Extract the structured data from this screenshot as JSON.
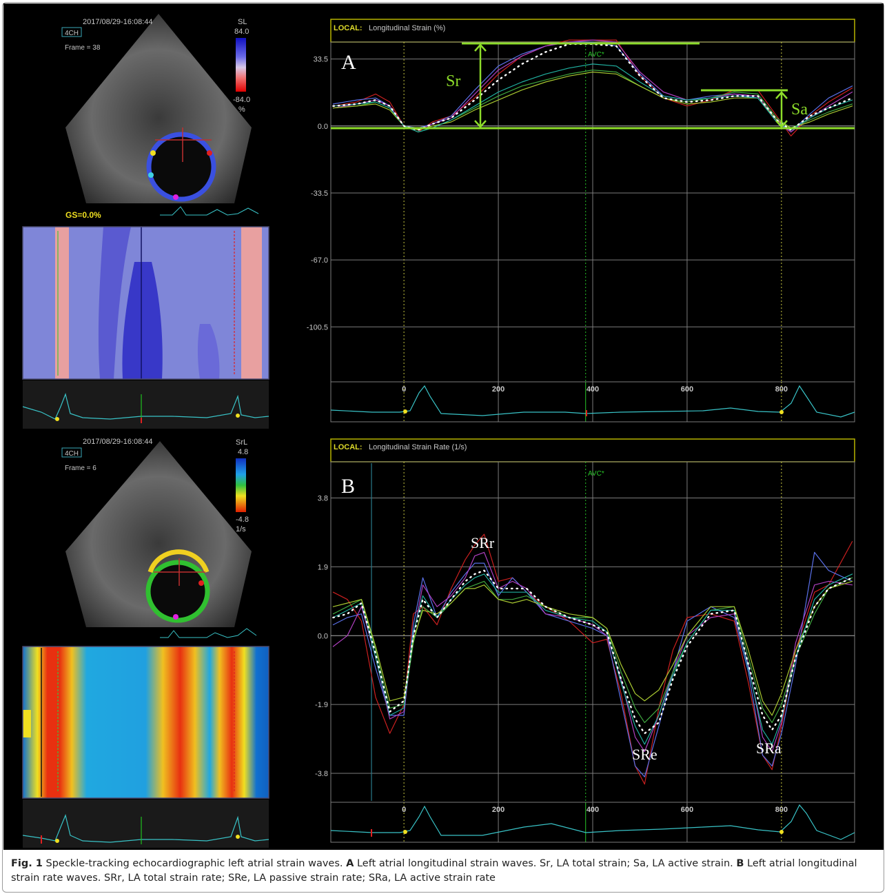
{
  "colors": {
    "grid": "#7d7d7d",
    "annot": "#8ddc2a",
    "ecg": "#39c4c8",
    "header_border": "#b8b400",
    "header_label": "#e0dc2a",
    "avc": "#28c828"
  },
  "panelA": {
    "timestamp": "2017/08/29-16:08:44",
    "view": "4CH",
    "frame": "Frame = 38",
    "scale_name": "SL",
    "scale_max": "84.0",
    "scale_min": "-84.0",
    "scale_unit": "%",
    "gs": "GS=0.0%",
    "header_local": "LOCAL:",
    "header_title": "Longitudinal Strain (%)",
    "letter": "A",
    "avc": "AVC*",
    "sr_label": "Sr",
    "sa_label": "Sa"
  },
  "panelB": {
    "timestamp": "2017/08/29-16:08:44",
    "view": "4CH",
    "frame": "Frame =  6",
    "scale_name": "SrL",
    "scale_max": "4.8",
    "scale_min": "-4.8",
    "scale_unit": "1/s",
    "header_local": "LOCAL:",
    "header_title": "Longitudinal Strain Rate (1/s)",
    "letter": "B",
    "avc": "AVC*",
    "srr_label": "SRr",
    "sre_label": "SRe",
    "sra_label": "SRa"
  },
  "chart_data": [
    {
      "type": "line",
      "title": "Longitudinal Strain (%)",
      "xlabel": "",
      "ylabel": "",
      "x_ticks": [
        "0",
        "200",
        "400",
        "600",
        "800"
      ],
      "y_ticks": [
        "33.5",
        "0.0",
        "-33.5",
        "-67.0",
        "-100.5"
      ],
      "xlim": [
        -155,
        955
      ],
      "ylim": [
        -128,
        42
      ],
      "markers": {
        "avc_ms": 385,
        "frame_ms": [
          0,
          800
        ]
      },
      "annotations": {
        "Sr": [
          0,
          41.5
        ],
        "Sa": [
          800,
          19
        ]
      },
      "series": [
        {
          "color": "#ffffff",
          "style": "dotted",
          "x": [
            -150,
            -100,
            -60,
            -30,
            0,
            30,
            60,
            100,
            150,
            200,
            250,
            300,
            350,
            400,
            450,
            500,
            550,
            600,
            650,
            700,
            750,
            790,
            820,
            860,
            900,
            950
          ],
          "y": [
            10,
            11,
            13,
            10,
            0,
            -2,
            1,
            4,
            13,
            23,
            31,
            37,
            41,
            41,
            40,
            25,
            14,
            12,
            13,
            15,
            15,
            3,
            -2,
            5,
            9,
            14
          ]
        },
        {
          "color": "#cc2020",
          "x": [
            -150,
            -100,
            -60,
            -30,
            0,
            30,
            60,
            100,
            150,
            200,
            250,
            300,
            350,
            400,
            450,
            500,
            550,
            600,
            650,
            700,
            750,
            790,
            820,
            860,
            900,
            950
          ],
          "y": [
            10,
            12,
            16,
            12,
            0,
            -3,
            2,
            5,
            14,
            26,
            35,
            40,
            43,
            43,
            43,
            25,
            14,
            10,
            13,
            18,
            18,
            5,
            -5,
            5,
            12,
            19
          ]
        },
        {
          "color": "#5a70e8",
          "x": [
            -150,
            -100,
            -60,
            -30,
            0,
            30,
            60,
            100,
            150,
            200,
            250,
            300,
            350,
            400,
            450,
            500,
            550,
            600,
            650,
            700,
            750,
            790,
            820,
            860,
            900,
            950
          ],
          "y": [
            11,
            13,
            14,
            10,
            0,
            -1,
            1,
            5,
            18,
            30,
            36,
            40,
            42,
            42,
            40,
            26,
            15,
            13,
            15,
            16,
            14,
            2,
            -3,
            6,
            14,
            20
          ]
        },
        {
          "color": "#b040c0",
          "x": [
            -150,
            -100,
            -60,
            -30,
            0,
            30,
            60,
            100,
            150,
            200,
            250,
            300,
            350,
            400,
            450,
            500,
            550,
            600,
            650,
            700,
            750,
            790,
            820,
            860,
            900,
            950
          ],
          "y": [
            9,
            11,
            13,
            10,
            0,
            -2,
            1,
            4,
            16,
            28,
            35,
            40,
            42,
            43,
            42,
            27,
            17,
            13,
            14,
            16,
            15,
            3,
            -3,
            4,
            10,
            17
          ]
        },
        {
          "color": "#40a840",
          "x": [
            -150,
            -100,
            -60,
            -30,
            0,
            30,
            60,
            100,
            150,
            200,
            250,
            300,
            350,
            400,
            450,
            500,
            550,
            600,
            650,
            700,
            750,
            790,
            820,
            860,
            900,
            950
          ],
          "y": [
            9,
            10,
            12,
            9,
            0,
            -3,
            -1,
            3,
            9,
            15,
            20,
            23,
            26,
            28,
            27,
            20,
            14,
            12,
            14,
            17,
            16,
            4,
            -1,
            3,
            7,
            11
          ]
        },
        {
          "color": "#a8c830",
          "x": [
            -150,
            -100,
            -60,
            -30,
            0,
            30,
            60,
            100,
            150,
            200,
            250,
            300,
            350,
            400,
            450,
            500,
            550,
            600,
            650,
            700,
            750,
            790,
            820,
            860,
            900,
            950
          ],
          "y": [
            9,
            10,
            11,
            8,
            0,
            -2,
            0,
            2,
            8,
            13,
            18,
            22,
            25,
            27,
            26,
            20,
            14,
            11,
            12,
            14,
            14,
            3,
            -1,
            2,
            6,
            10
          ]
        },
        {
          "color": "#20b0a0",
          "x": [
            -150,
            -100,
            -60,
            -30,
            0,
            30,
            60,
            100,
            150,
            200,
            250,
            300,
            350,
            400,
            450,
            500,
            550,
            600,
            650,
            700,
            750,
            790,
            820,
            860,
            900,
            950
          ],
          "y": [
            10,
            11,
            12,
            9,
            0,
            -3,
            -1,
            3,
            10,
            17,
            22,
            26,
            29,
            31,
            30,
            22,
            15,
            13,
            14,
            15,
            14,
            2,
            -2,
            4,
            9,
            13
          ]
        }
      ]
    },
    {
      "type": "line",
      "title": "Longitudinal Strain Rate (1/s)",
      "xlabel": "",
      "ylabel": "",
      "x_ticks": [
        "0",
        "200",
        "400",
        "600",
        "800"
      ],
      "y_ticks": [
        "3.8",
        "1.9",
        "0.0",
        "-1.9",
        "-3.8"
      ],
      "xlim": [
        -155,
        955
      ],
      "ylim": [
        -4.6,
        4.8
      ],
      "markers": {
        "avc_ms": 385,
        "frame_ms": [
          0,
          800
        ]
      },
      "annotations": {
        "SRr": [
          150,
          2.35
        ],
        "SRe": [
          510,
          -3.3
        ],
        "SRa": [
          780,
          -3.0
        ]
      },
      "series": [
        {
          "color": "#ffffff",
          "style": "dotted",
          "x": [
            -150,
            -120,
            -90,
            -60,
            -30,
            0,
            20,
            40,
            70,
            100,
            130,
            150,
            170,
            200,
            230,
            260,
            300,
            350,
            400,
            430,
            460,
            490,
            510,
            540,
            570,
            600,
            650,
            700,
            730,
            760,
            780,
            800,
            830,
            870,
            900,
            950
          ],
          "y": [
            0.5,
            0.6,
            0.9,
            -0.5,
            -2.1,
            -1.8,
            0.0,
            1.0,
            0.5,
            1.0,
            1.5,
            1.7,
            1.8,
            1.3,
            1.3,
            1.3,
            0.8,
            0.5,
            0.3,
            0.1,
            -1.2,
            -2.3,
            -2.7,
            -2.4,
            -1.2,
            -0.3,
            0.6,
            0.7,
            -0.8,
            -2.2,
            -2.6,
            -2.2,
            -0.6,
            0.8,
            1.3,
            1.6
          ]
        },
        {
          "color": "#cc2020",
          "x": [
            -150,
            -120,
            -90,
            -60,
            -30,
            0,
            20,
            40,
            70,
            100,
            130,
            150,
            170,
            200,
            230,
            260,
            300,
            350,
            400,
            430,
            460,
            490,
            510,
            540,
            570,
            600,
            650,
            700,
            730,
            760,
            780,
            800,
            830,
            870,
            900,
            950
          ],
          "y": [
            1.2,
            1.0,
            0.4,
            -1.7,
            -2.7,
            -1.9,
            0.6,
            0.8,
            0.3,
            1.3,
            2.1,
            2.5,
            2.8,
            1.5,
            1.6,
            1.2,
            0.8,
            0.4,
            -0.2,
            -0.1,
            -1.6,
            -3.6,
            -4.1,
            -2.0,
            -0.4,
            0.5,
            0.6,
            0.4,
            -1.3,
            -3.3,
            -3.7,
            -2.5,
            -0.4,
            1.2,
            1.4,
            2.6
          ]
        },
        {
          "color": "#5a70e8",
          "x": [
            -150,
            -120,
            -90,
            -60,
            -30,
            0,
            20,
            40,
            70,
            100,
            130,
            150,
            170,
            200,
            230,
            260,
            300,
            350,
            400,
            430,
            460,
            490,
            510,
            540,
            570,
            600,
            650,
            700,
            730,
            760,
            780,
            800,
            830,
            870,
            900,
            950
          ],
          "y": [
            0.3,
            0.5,
            0.6,
            -0.9,
            -2.2,
            -2.2,
            0.3,
            1.6,
            0.5,
            1.2,
            1.7,
            2.0,
            2.0,
            1.1,
            1.6,
            1.2,
            0.6,
            0.4,
            0.2,
            0.0,
            -1.8,
            -3.6,
            -3.9,
            -2.5,
            -1.0,
            0.4,
            0.8,
            0.5,
            -1.0,
            -3.3,
            -3.6,
            -2.7,
            -0.8,
            2.3,
            1.8,
            1.5
          ]
        },
        {
          "color": "#b040c0",
          "x": [
            -150,
            -120,
            -90,
            -60,
            -30,
            0,
            20,
            40,
            70,
            100,
            130,
            150,
            170,
            200,
            230,
            260,
            300,
            350,
            400,
            430,
            460,
            490,
            510,
            540,
            570,
            600,
            650,
            700,
            730,
            760,
            780,
            800,
            830,
            870,
            900,
            950
          ],
          "y": [
            -0.3,
            0.0,
            0.8,
            -0.6,
            -2.3,
            -2.1,
            0.0,
            1.4,
            0.8,
            1.1,
            1.6,
            2.2,
            2.3,
            1.3,
            1.5,
            1.3,
            0.6,
            0.5,
            0.3,
            0.0,
            -1.2,
            -2.8,
            -3.2,
            -2.2,
            -1.0,
            0.0,
            0.5,
            0.6,
            -0.8,
            -2.8,
            -3.2,
            -2.4,
            -0.2,
            1.4,
            1.5,
            1.4
          ]
        },
        {
          "color": "#40a840",
          "x": [
            -150,
            -120,
            -90,
            -60,
            -30,
            0,
            20,
            40,
            70,
            100,
            130,
            150,
            170,
            200,
            230,
            260,
            300,
            350,
            400,
            430,
            460,
            490,
            510,
            540,
            570,
            600,
            650,
            700,
            730,
            760,
            780,
            800,
            830,
            870,
            900,
            950
          ],
          "y": [
            0.6,
            0.8,
            1.0,
            -0.4,
            -2.0,
            -1.9,
            -0.2,
            0.8,
            0.5,
            0.9,
            1.3,
            1.4,
            1.5,
            1.0,
            1.0,
            1.1,
            0.8,
            0.5,
            0.5,
            0.2,
            -1.0,
            -2.0,
            -2.4,
            -2.0,
            -1.0,
            -0.2,
            0.7,
            0.8,
            -0.6,
            -2.0,
            -2.4,
            -1.9,
            -0.6,
            0.6,
            1.3,
            1.6
          ]
        },
        {
          "color": "#a8c830",
          "x": [
            -150,
            -120,
            -90,
            -60,
            -30,
            0,
            20,
            40,
            70,
            100,
            130,
            150,
            170,
            200,
            230,
            260,
            300,
            350,
            400,
            430,
            460,
            490,
            510,
            540,
            570,
            600,
            650,
            700,
            730,
            760,
            780,
            800,
            830,
            870,
            900,
            950
          ],
          "y": [
            0.8,
            0.9,
            1.0,
            -0.3,
            -1.8,
            -1.7,
            -0.1,
            0.7,
            0.6,
            0.9,
            1.3,
            1.3,
            1.4,
            1.0,
            0.9,
            1.0,
            0.8,
            0.6,
            0.5,
            0.2,
            -0.8,
            -1.6,
            -1.8,
            -1.5,
            -0.8,
            0.0,
            0.8,
            0.8,
            -0.4,
            -1.8,
            -2.2,
            -1.6,
            -0.4,
            0.8,
            1.3,
            1.5
          ]
        },
        {
          "color": "#20b0a0",
          "x": [
            -150,
            -120,
            -90,
            -60,
            -30,
            0,
            20,
            40,
            70,
            100,
            130,
            150,
            170,
            200,
            230,
            260,
            300,
            350,
            400,
            430,
            460,
            490,
            510,
            540,
            570,
            600,
            650,
            700,
            730,
            760,
            780,
            800,
            830,
            870,
            900,
            950
          ],
          "y": [
            0.5,
            0.7,
            0.9,
            -0.6,
            -2.2,
            -2.0,
            0.1,
            1.1,
            0.5,
            1.0,
            1.4,
            1.6,
            1.7,
            1.2,
            1.2,
            1.2,
            0.7,
            0.5,
            0.4,
            0.1,
            -1.3,
            -2.5,
            -3.0,
            -2.2,
            -1.1,
            -0.2,
            0.7,
            0.7,
            -0.9,
            -2.6,
            -3.0,
            -2.3,
            -0.6,
            1.0,
            1.4,
            1.7
          ]
        }
      ]
    }
  ],
  "caption": {
    "fig": "Fig. 1",
    "p1": "  Speckle-tracking echocardiographic left atrial strain waves. ",
    "a": "A",
    "p2": " Left atrial longitudinal strain waves. Sr, LA total strain; Sa, LA active strain. ",
    "b": "B",
    "p3": " Left atrial longitudinal strain rate waves. SRr, LA total strain rate; SRe, LA passive strain rate; SRa, LA active strain rate"
  }
}
